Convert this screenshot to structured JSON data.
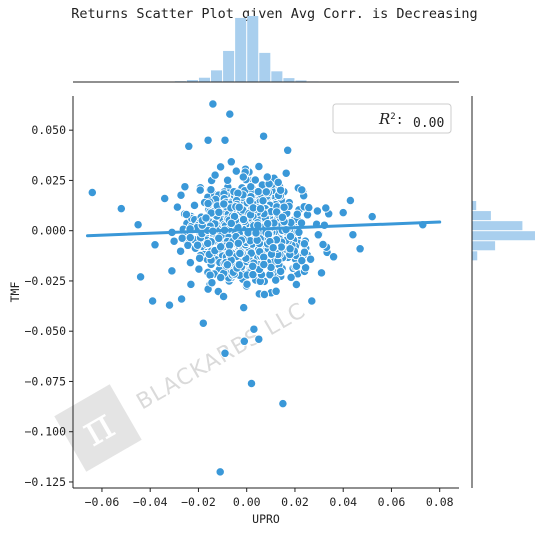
{
  "title": "Returns Scatter Plot given Avg Corr. is Decreasing",
  "colors": {
    "accent": "#3a98d8",
    "hist": "#a9cfee",
    "axis": "#222222"
  },
  "watermark": {
    "text": "BLACKARBS LLC",
    "logo_icon": "pi-logo-icon"
  },
  "chart_data": {
    "type": "scatter",
    "title": "Returns Scatter Plot given Avg Corr. is Decreasing",
    "xlabel": "UPRO",
    "ylabel": "TMF",
    "xlim": [
      -0.072,
      0.088
    ],
    "ylim": [
      -0.128,
      0.067
    ],
    "xticks": [
      -0.06,
      -0.04,
      -0.02,
      0.0,
      0.02,
      0.04,
      0.06,
      0.08
    ],
    "xtick_labels": [
      "−0.06",
      "−0.04",
      "−0.02",
      "0.00",
      "0.02",
      "0.04",
      "0.06",
      "0.08"
    ],
    "yticks": [
      0.05,
      0.025,
      0.0,
      -0.025,
      -0.05,
      -0.075,
      -0.1,
      -0.125
    ],
    "ytick_labels": [
      "0.050",
      "0.025",
      "0.000",
      "−0.025",
      "−0.050",
      "−0.075",
      "−0.100",
      "−0.125"
    ],
    "grid": false,
    "annotation": {
      "label": "R²: 0.00",
      "r2": "0.00",
      "position": "top-right"
    },
    "regression_line": {
      "x": [
        -0.066,
        0.08
      ],
      "y": [
        -0.0025,
        0.0043
      ]
    },
    "outliers": [
      [
        -0.014,
        0.063
      ],
      [
        -0.007,
        0.058
      ],
      [
        -0.024,
        0.042
      ],
      [
        -0.016,
        0.045
      ],
      [
        -0.009,
        0.045
      ],
      [
        0.007,
        0.047
      ],
      [
        0.017,
        0.04
      ],
      [
        -0.052,
        0.011
      ],
      [
        0.052,
        0.007
      ],
      [
        0.073,
        0.003
      ],
      [
        -0.064,
        0.019
      ],
      [
        -0.034,
        0.016
      ],
      [
        0.043,
        0.015
      ],
      [
        0.04,
        0.009
      ],
      [
        -0.045,
        0.003
      ],
      [
        0.044,
        -0.002
      ],
      [
        0.047,
        -0.009
      ],
      [
        -0.038,
        -0.007
      ],
      [
        -0.031,
        -0.02
      ],
      [
        -0.044,
        -0.023
      ],
      [
        -0.039,
        -0.035
      ],
      [
        -0.032,
        -0.037
      ],
      [
        -0.027,
        -0.034
      ],
      [
        0.036,
        -0.013
      ],
      [
        0.031,
        -0.021
      ],
      [
        -0.009,
        -0.061
      ],
      [
        0.003,
        -0.049
      ],
      [
        0.005,
        -0.054
      ],
      [
        0.002,
        -0.076
      ],
      [
        0.015,
        -0.086
      ],
      [
        -0.011,
        -0.12
      ],
      [
        -0.018,
        -0.046
      ],
      [
        0.027,
        -0.035
      ],
      [
        -0.001,
        -0.055
      ]
    ],
    "cloud": {
      "n": 1150,
      "x_mean": 0.001,
      "x_sd": 0.011,
      "y_mean": -0.0005,
      "y_sd": 0.0115
    },
    "marginal_x": {
      "bin_edges": [
        -0.03,
        -0.025,
        -0.02,
        -0.015,
        -0.01,
        -0.005,
        0.0,
        0.005,
        0.01,
        0.015,
        0.02,
        0.025,
        0.03
      ],
      "counts": [
        4,
        10,
        22,
        60,
        160,
        330,
        340,
        150,
        55,
        20,
        8,
        3
      ]
    },
    "marginal_y": {
      "bin_edges": [
        -0.015,
        -0.01,
        -0.005,
        0.0,
        0.005,
        0.01,
        0.015
      ],
      "counts": [
        25,
        110,
        300,
        240,
        90,
        20
      ]
    }
  }
}
